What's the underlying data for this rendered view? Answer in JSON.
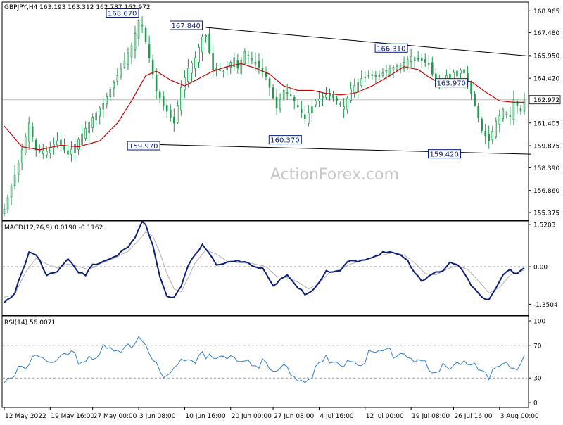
{
  "header": {
    "symbol_line": "GBPJPY,H4  163.193 163.312 162.787 162.972"
  },
  "watermark": "ActionForex.com",
  "colors": {
    "bull": "#1f9a4f",
    "bear": "#1f9a4f",
    "ma": "#cc0000",
    "trend": "#000000",
    "macd": "#0b1f7a",
    "signal": "#b0b0b0",
    "rsi": "#2f7fd0",
    "label_bg": "#ffffff",
    "label_border": "#0b1f7a",
    "label_text": "#0b1f7a"
  },
  "chart_data": [
    {
      "type": "candlestick",
      "title": "GBPJPY,H4",
      "ylim": [
        154.9,
        169.5
      ],
      "yticks": [
        "168.965",
        "167.480",
        "165.950",
        "164.420",
        "162.972",
        "161.405",
        "159.875",
        "158.390",
        "156.860",
        "155.375"
      ],
      "current_price": "162.972",
      "xticks": [
        "12 May 2022",
        "19 May 16:00",
        "27 May 00:00",
        "3 Jun 08:00",
        "10 Jun 16:00",
        "20 Jun 00:00",
        "27 Jun 08:00",
        "4 Jul 16:00",
        "12 Jul 00:00",
        "19 Jul 08:00",
        "26 Jul 16:00",
        "3 Aug 00:00"
      ],
      "annotations": [
        {
          "label": "168.670",
          "value": 168.67
        },
        {
          "label": "167.840",
          "value": 167.84
        },
        {
          "label": "166.310",
          "value": 166.31
        },
        {
          "label": "163.970",
          "value": 163.97
        },
        {
          "label": "159.970",
          "value": 159.97
        },
        {
          "label": "160.370",
          "value": 160.37
        },
        {
          "label": "159.420",
          "value": 159.42
        }
      ],
      "trendlines": [
        {
          "from": [
            57,
            167.84
          ],
          "to": [
            149,
            165.9
          ]
        },
        {
          "from": [
            40,
            159.97
          ],
          "to": [
            149,
            159.3
          ]
        }
      ],
      "closes_knots": [
        [
          0,
          155.6
        ],
        [
          4,
          158.7
        ],
        [
          7,
          161.4
        ],
        [
          9,
          159.6
        ],
        [
          12,
          159.5
        ],
        [
          15,
          160.2
        ],
        [
          18,
          159.3
        ],
        [
          21,
          160.3
        ],
        [
          25,
          161.8
        ],
        [
          28,
          162.7
        ],
        [
          32,
          164.6
        ],
        [
          36,
          166.6
        ],
        [
          38,
          168.3
        ],
        [
          39,
          168.0
        ],
        [
          40,
          166.9
        ],
        [
          43,
          163.6
        ],
        [
          45,
          162.6
        ],
        [
          48,
          161.4
        ],
        [
          50,
          163.8
        ],
        [
          52,
          165.1
        ],
        [
          54,
          165.8
        ],
        [
          56,
          167.2
        ],
        [
          57,
          167.3
        ],
        [
          59,
          165.0
        ],
        [
          62,
          164.9
        ],
        [
          65,
          165.8
        ],
        [
          66,
          165.1
        ],
        [
          68,
          166.2
        ],
        [
          71,
          165.5
        ],
        [
          74,
          164.5
        ],
        [
          77,
          162.4
        ],
        [
          79,
          163.6
        ],
        [
          81,
          163.3
        ],
        [
          83,
          162.5
        ],
        [
          85,
          161.7
        ],
        [
          88,
          162.9
        ],
        [
          91,
          163.3
        ],
        [
          93,
          163.1
        ],
        [
          96,
          162.5
        ],
        [
          98,
          163.7
        ],
        [
          101,
          164.4
        ],
        [
          103,
          164.6
        ],
        [
          106,
          164.6
        ],
        [
          109,
          165.1
        ],
        [
          112,
          165.3
        ],
        [
          115,
          165.9
        ],
        [
          118,
          165.6
        ],
        [
          120,
          165.4
        ],
        [
          122,
          164.0
        ],
        [
          125,
          164.6
        ],
        [
          128,
          164.9
        ],
        [
          130,
          165.0
        ],
        [
          133,
          162.6
        ],
        [
          135,
          160.9
        ],
        [
          137,
          160.2
        ],
        [
          139,
          161.5
        ],
        [
          141,
          162.3
        ],
        [
          143,
          161.9
        ],
        [
          144,
          163.0
        ],
        [
          146,
          162.2
        ],
        [
          147,
          162.9
        ]
      ],
      "ma_knots": [
        [
          0,
          161.2
        ],
        [
          5,
          159.8
        ],
        [
          10,
          159.6
        ],
        [
          16,
          159.9
        ],
        [
          21,
          159.8
        ],
        [
          27,
          160.2
        ],
        [
          32,
          161.4
        ],
        [
          36,
          162.9
        ],
        [
          40,
          164.6
        ],
        [
          43,
          164.9
        ],
        [
          47,
          164.3
        ],
        [
          51,
          163.9
        ],
        [
          55,
          164.4
        ],
        [
          59,
          164.9
        ],
        [
          63,
          165.2
        ],
        [
          67,
          165.4
        ],
        [
          71,
          165.1
        ],
        [
          75,
          164.7
        ],
        [
          79,
          163.9
        ],
        [
          83,
          163.6
        ],
        [
          87,
          163.6
        ],
        [
          91,
          163.4
        ],
        [
          95,
          163.3
        ],
        [
          99,
          163.4
        ],
        [
          104,
          163.9
        ],
        [
          109,
          164.6
        ],
        [
          113,
          165.2
        ],
        [
          117,
          165.0
        ],
        [
          120,
          164.5
        ],
        [
          124,
          164.0
        ],
        [
          128,
          164.3
        ],
        [
          132,
          164.2
        ],
        [
          136,
          163.5
        ],
        [
          140,
          162.9
        ],
        [
          144,
          162.8
        ],
        [
          147,
          162.8
        ]
      ]
    },
    {
      "type": "line",
      "title": "MACD(12,26,9) 0.0190 -0.1162",
      "ylim": [
        -1.72,
        1.62
      ],
      "yticks": [
        "1.5203",
        "0.00",
        "-1.3504"
      ],
      "zero_line": 0,
      "macd_knots": [
        [
          0,
          -1.25
        ],
        [
          3,
          -0.9
        ],
        [
          7,
          0.5
        ],
        [
          9,
          0.45
        ],
        [
          12,
          -0.25
        ],
        [
          15,
          -0.1
        ],
        [
          18,
          0.3
        ],
        [
          21,
          -0.2
        ],
        [
          23,
          -0.3
        ],
        [
          25,
          0.1
        ],
        [
          28,
          0.25
        ],
        [
          31,
          0.4
        ],
        [
          35,
          0.7
        ],
        [
          37,
          1.05
        ],
        [
          39,
          1.6
        ],
        [
          40,
          1.5
        ],
        [
          42,
          0.85
        ],
        [
          44,
          -0.3
        ],
        [
          46,
          -1.0
        ],
        [
          48,
          -1.1
        ],
        [
          50,
          -0.7
        ],
        [
          52,
          0.05
        ],
        [
          54,
          0.45
        ],
        [
          56,
          0.88
        ],
        [
          57,
          0.7
        ],
        [
          60,
          0.15
        ],
        [
          63,
          0.15
        ],
        [
          66,
          0.2
        ],
        [
          70,
          0.1
        ],
        [
          73,
          0.0
        ],
        [
          76,
          -0.6
        ],
        [
          78,
          -0.45
        ],
        [
          80,
          -0.3
        ],
        [
          83,
          -0.75
        ],
        [
          85,
          -0.95
        ],
        [
          88,
          -0.7
        ],
        [
          91,
          -0.1
        ],
        [
          93,
          -0.2
        ],
        [
          95,
          -0.15
        ],
        [
          97,
          0.2
        ],
        [
          100,
          0.25
        ],
        [
          103,
          0.35
        ],
        [
          106,
          0.5
        ],
        [
          109,
          0.55
        ],
        [
          112,
          0.4
        ],
        [
          114,
          0.25
        ],
        [
          116,
          -0.15
        ],
        [
          118,
          -0.45
        ],
        [
          121,
          -0.2
        ],
        [
          124,
          -0.15
        ],
        [
          126,
          0.15
        ],
        [
          128,
          0.1
        ],
        [
          130,
          -0.2
        ],
        [
          132,
          -0.6
        ],
        [
          135,
          -1.05
        ],
        [
          137,
          -1.2
        ],
        [
          139,
          -0.75
        ],
        [
          141,
          -0.3
        ],
        [
          143,
          -0.1
        ],
        [
          145,
          -0.2
        ],
        [
          147,
          0.02
        ]
      ],
      "signal_knots": [
        [
          0,
          -1.1
        ],
        [
          3,
          -1.0
        ],
        [
          6,
          -0.2
        ],
        [
          9,
          0.3
        ],
        [
          12,
          0.1
        ],
        [
          15,
          -0.05
        ],
        [
          18,
          0.1
        ],
        [
          21,
          0.0
        ],
        [
          24,
          -0.1
        ],
        [
          27,
          0.1
        ],
        [
          31,
          0.3
        ],
        [
          35,
          0.55
        ],
        [
          38,
          0.95
        ],
        [
          40,
          1.25
        ],
        [
          42,
          1.1
        ],
        [
          44,
          0.5
        ],
        [
          46,
          -0.25
        ],
        [
          48,
          -0.8
        ],
        [
          50,
          -0.9
        ],
        [
          52,
          -0.4
        ],
        [
          54,
          0.15
        ],
        [
          57,
          0.6
        ],
        [
          60,
          0.45
        ],
        [
          63,
          0.2
        ],
        [
          66,
          0.15
        ],
        [
          70,
          0.12
        ],
        [
          74,
          0.0
        ],
        [
          77,
          -0.35
        ],
        [
          80,
          -0.4
        ],
        [
          83,
          -0.55
        ],
        [
          86,
          -0.8
        ],
        [
          89,
          -0.6
        ],
        [
          92,
          -0.2
        ],
        [
          95,
          -0.1
        ],
        [
          98,
          0.1
        ],
        [
          102,
          0.25
        ],
        [
          106,
          0.4
        ],
        [
          110,
          0.5
        ],
        [
          113,
          0.42
        ],
        [
          116,
          0.15
        ],
        [
          119,
          -0.25
        ],
        [
          122,
          -0.3
        ],
        [
          125,
          -0.1
        ],
        [
          128,
          0.05
        ],
        [
          131,
          -0.1
        ],
        [
          134,
          -0.5
        ],
        [
          137,
          -0.95
        ],
        [
          140,
          -0.75
        ],
        [
          143,
          -0.3
        ],
        [
          147,
          -0.12
        ]
      ]
    },
    {
      "type": "line",
      "title": "RSI(14) 56.0071",
      "ylim": [
        0,
        100
      ],
      "yticks": [
        "100",
        "70",
        "30",
        "0"
      ],
      "levels": [
        70,
        30
      ],
      "rsi_knots": [
        [
          0,
          22
        ],
        [
          2,
          30
        ],
        [
          4,
          42
        ],
        [
          6,
          52
        ],
        [
          8,
          62
        ],
        [
          10,
          65
        ],
        [
          12,
          55
        ],
        [
          15,
          50
        ],
        [
          18,
          62
        ],
        [
          21,
          55
        ],
        [
          24,
          62
        ],
        [
          27,
          68
        ],
        [
          30,
          65
        ],
        [
          33,
          60
        ],
        [
          36,
          78
        ],
        [
          38,
          88
        ],
        [
          40,
          82
        ],
        [
          42,
          60
        ],
        [
          44,
          35
        ],
        [
          46,
          30
        ],
        [
          48,
          40
        ],
        [
          50,
          55
        ],
        [
          52,
          62
        ],
        [
          54,
          58
        ],
        [
          56,
          72
        ],
        [
          57,
          65
        ],
        [
          60,
          55
        ],
        [
          63,
          55
        ],
        [
          66,
          60
        ],
        [
          70,
          55
        ],
        [
          73,
          52
        ],
        [
          76,
          40
        ],
        [
          78,
          42
        ],
        [
          80,
          48
        ],
        [
          83,
          35
        ],
        [
          85,
          32
        ],
        [
          88,
          45
        ],
        [
          91,
          55
        ],
        [
          93,
          48
        ],
        [
          95,
          52
        ],
        [
          97,
          58
        ],
        [
          100,
          55
        ],
        [
          103,
          60
        ],
        [
          106,
          62
        ],
        [
          109,
          65
        ],
        [
          112,
          68
        ],
        [
          115,
          62
        ],
        [
          118,
          55
        ],
        [
          120,
          42
        ],
        [
          122,
          38
        ],
        [
          125,
          48
        ],
        [
          128,
          55
        ],
        [
          130,
          60
        ],
        [
          132,
          50
        ],
        [
          135,
          38
        ],
        [
          137,
          30
        ],
        [
          139,
          42
        ],
        [
          141,
          55
        ],
        [
          143,
          52
        ],
        [
          145,
          48
        ],
        [
          147,
          56
        ]
      ]
    }
  ]
}
